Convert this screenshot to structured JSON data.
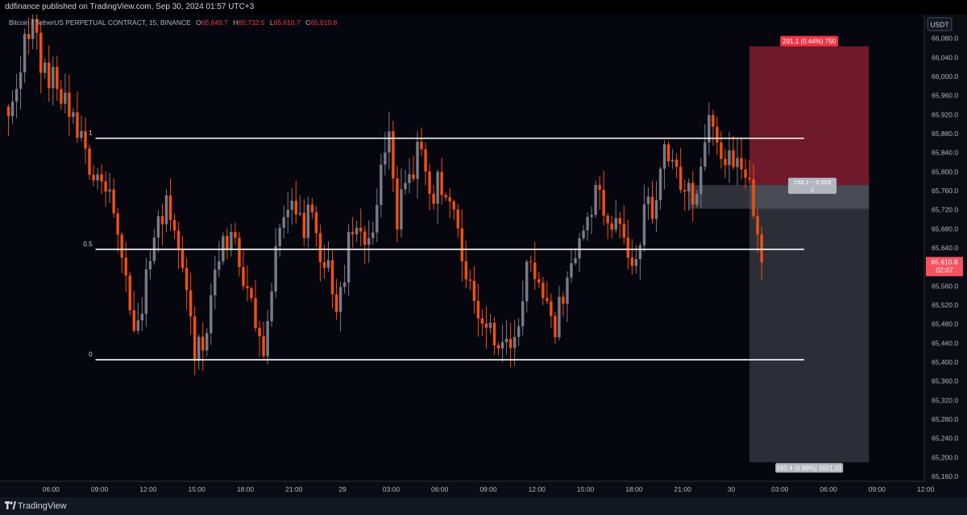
{
  "header": {
    "published": "ddfinance published on TradingView.com, Sep 30, 2024 01:57 UTC+3"
  },
  "legend": {
    "symbol": "Bitcoin / TetherUS PERPETUAL CONTRACT, 15, BINANCE",
    "o_label": "O",
    "o": "65,649.7",
    "h_label": "H",
    "h": "65,732.5",
    "l_label": "L",
    "l": "65,610.7",
    "c_label": "C",
    "c": "65,610.8"
  },
  "axis": {
    "currency": "USDT"
  },
  "last_price": {
    "price": "65,610.8",
    "countdown": "02:07",
    "value": 65610.8
  },
  "footer": {
    "brand": "TradingView"
  },
  "colors": {
    "up": "#787b86",
    "down": "#f0500f",
    "target_zone": "#7a1d2e",
    "stop_zone": "#3a3c46",
    "label_red": "#f23645",
    "label_grey": "#b2b5be",
    "fib_line": "#ffffff"
  },
  "chart_data": {
    "type": "candlestick",
    "title": "Bitcoin / TetherUS PERPETUAL CONTRACT, 15, BINANCE",
    "timeframe": "15",
    "currency": "USDT",
    "ylim": [
      65150,
      66130
    ],
    "y_ticks": [
      66080,
      66040,
      66000,
      65960,
      65920,
      65880,
      65840,
      65800,
      65760,
      65720,
      65680,
      65640,
      65600,
      65560,
      65520,
      65480,
      65440,
      65400,
      65360,
      65320,
      65280,
      65240,
      65200,
      65160
    ],
    "y_tick_labels": [
      "66,080.0",
      "66,040.0",
      "66,000.0",
      "65,960.0",
      "65,920.0",
      "65,880.0",
      "65,840.0",
      "65,800.0",
      "65,760.0",
      "65,720.0",
      "65,680.0",
      "65,640.0",
      "65,600.0",
      "65,560.0",
      "65,520.0",
      "65,480.0",
      "65,440.0",
      "65,400.0",
      "65,360.0",
      "65,320.0",
      "65,280.0",
      "65,240.0",
      "65,200.0",
      "65,160.0"
    ],
    "x_ticks": [
      {
        "label": "06:00",
        "bar": 11
      },
      {
        "label": "09:00",
        "bar": 23
      },
      {
        "label": "12:00",
        "bar": 35
      },
      {
        "label": "15:00",
        "bar": 47
      },
      {
        "label": "18:00",
        "bar": 59
      },
      {
        "label": "21:00",
        "bar": 71
      },
      {
        "label": "29",
        "bar": 83
      },
      {
        "label": "03:00",
        "bar": 95
      },
      {
        "label": "06:00",
        "bar": 107
      },
      {
        "label": "09:00",
        "bar": 119
      },
      {
        "label": "12:00",
        "bar": 131
      },
      {
        "label": "15:00",
        "bar": 143
      },
      {
        "label": "18:00",
        "bar": 155
      },
      {
        "label": "21:00",
        "bar": 167
      },
      {
        "label": "30",
        "bar": 179
      },
      {
        "label": "03:00",
        "bar": 191
      },
      {
        "label": "06:00",
        "bar": 203
      },
      {
        "label": "09:00",
        "bar": 215
      },
      {
        "label": "12:00",
        "bar": 227
      }
    ],
    "fib_levels": [
      {
        "label": "1",
        "price": 65870
      },
      {
        "label": "0.5",
        "price": 65637
      },
      {
        "label": "0",
        "price": 65405
      }
    ],
    "fib_start_bar": 22,
    "fib_end_bar": 197,
    "position": {
      "type": "long",
      "start_bar": 183.5,
      "end_bar": 213,
      "entry": 65772,
      "target": 66063,
      "stop": 65190,
      "current_price": 65610.8,
      "target_label": "291.1 (0.44%) 750",
      "entry_label_line1": "158.2 − 0.859",
      "entry_label_line2": "2",
      "stop_label": "583.4 (0.89%) 1501.01"
    },
    "anchors": [
      {
        "bar": 0,
        "price": 65900
      },
      {
        "bar": 3,
        "price": 66040
      },
      {
        "bar": 6,
        "price": 66110
      },
      {
        "bar": 9,
        "price": 66000
      },
      {
        "bar": 12,
        "price": 65980
      },
      {
        "bar": 16,
        "price": 65920
      },
      {
        "bar": 20,
        "price": 65820
      },
      {
        "bar": 22,
        "price": 65760
      },
      {
        "bar": 24,
        "price": 65790
      },
      {
        "bar": 26,
        "price": 65700
      },
      {
        "bar": 28,
        "price": 65600
      },
      {
        "bar": 31,
        "price": 65450
      },
      {
        "bar": 34,
        "price": 65560
      },
      {
        "bar": 37,
        "price": 65690
      },
      {
        "bar": 40,
        "price": 65730
      },
      {
        "bar": 43,
        "price": 65600
      },
      {
        "bar": 46,
        "price": 65410
      },
      {
        "bar": 49,
        "price": 65480
      },
      {
        "bar": 51,
        "price": 65590
      },
      {
        "bar": 53,
        "price": 65690
      },
      {
        "bar": 55,
        "price": 65650
      },
      {
        "bar": 58,
        "price": 65590
      },
      {
        "bar": 61,
        "price": 65500
      },
      {
        "bar": 63,
        "price": 65440
      },
      {
        "bar": 66,
        "price": 65620
      },
      {
        "bar": 69,
        "price": 65720
      },
      {
        "bar": 72,
        "price": 65690
      },
      {
        "bar": 75,
        "price": 65700
      },
      {
        "bar": 77,
        "price": 65640
      },
      {
        "bar": 79,
        "price": 65580
      },
      {
        "bar": 81,
        "price": 65520
      },
      {
        "bar": 84,
        "price": 65640
      },
      {
        "bar": 86,
        "price": 65670
      },
      {
        "bar": 89,
        "price": 65650
      },
      {
        "bar": 92,
        "price": 65780
      },
      {
        "bar": 94,
        "price": 65860
      },
      {
        "bar": 96,
        "price": 65700
      },
      {
        "bar": 99,
        "price": 65800
      },
      {
        "bar": 102,
        "price": 65850
      },
      {
        "bar": 104,
        "price": 65760
      },
      {
        "bar": 107,
        "price": 65780
      },
      {
        "bar": 110,
        "price": 65700
      },
      {
        "bar": 113,
        "price": 65560
      },
      {
        "bar": 116,
        "price": 65500
      },
      {
        "bar": 119,
        "price": 65480
      },
      {
        "bar": 122,
        "price": 65440
      },
      {
        "bar": 125,
        "price": 65420
      },
      {
        "bar": 127,
        "price": 65560
      },
      {
        "bar": 129,
        "price": 65620
      },
      {
        "bar": 131,
        "price": 65580
      },
      {
        "bar": 134,
        "price": 65470
      },
      {
        "bar": 137,
        "price": 65520
      },
      {
        "bar": 140,
        "price": 65620
      },
      {
        "bar": 142,
        "price": 65700
      },
      {
        "bar": 145,
        "price": 65750
      },
      {
        "bar": 148,
        "price": 65720
      },
      {
        "bar": 151,
        "price": 65680
      },
      {
        "bar": 154,
        "price": 65620
      },
      {
        "bar": 157,
        "price": 65700
      },
      {
        "bar": 160,
        "price": 65740
      },
      {
        "bar": 162,
        "price": 65860
      },
      {
        "bar": 164,
        "price": 65800
      },
      {
        "bar": 166,
        "price": 65780
      },
      {
        "bar": 169,
        "price": 65740
      },
      {
        "bar": 171,
        "price": 65800
      },
      {
        "bar": 173,
        "price": 65900
      },
      {
        "bar": 175,
        "price": 65860
      },
      {
        "bar": 177,
        "price": 65820
      },
      {
        "bar": 179,
        "price": 65800
      },
      {
        "bar": 181,
        "price": 65830
      },
      {
        "bar": 183,
        "price": 65770
      },
      {
        "bar": 184,
        "price": 65720
      },
      {
        "bar": 185,
        "price": 65650
      },
      {
        "bar": 186,
        "price": 65610
      }
    ]
  }
}
